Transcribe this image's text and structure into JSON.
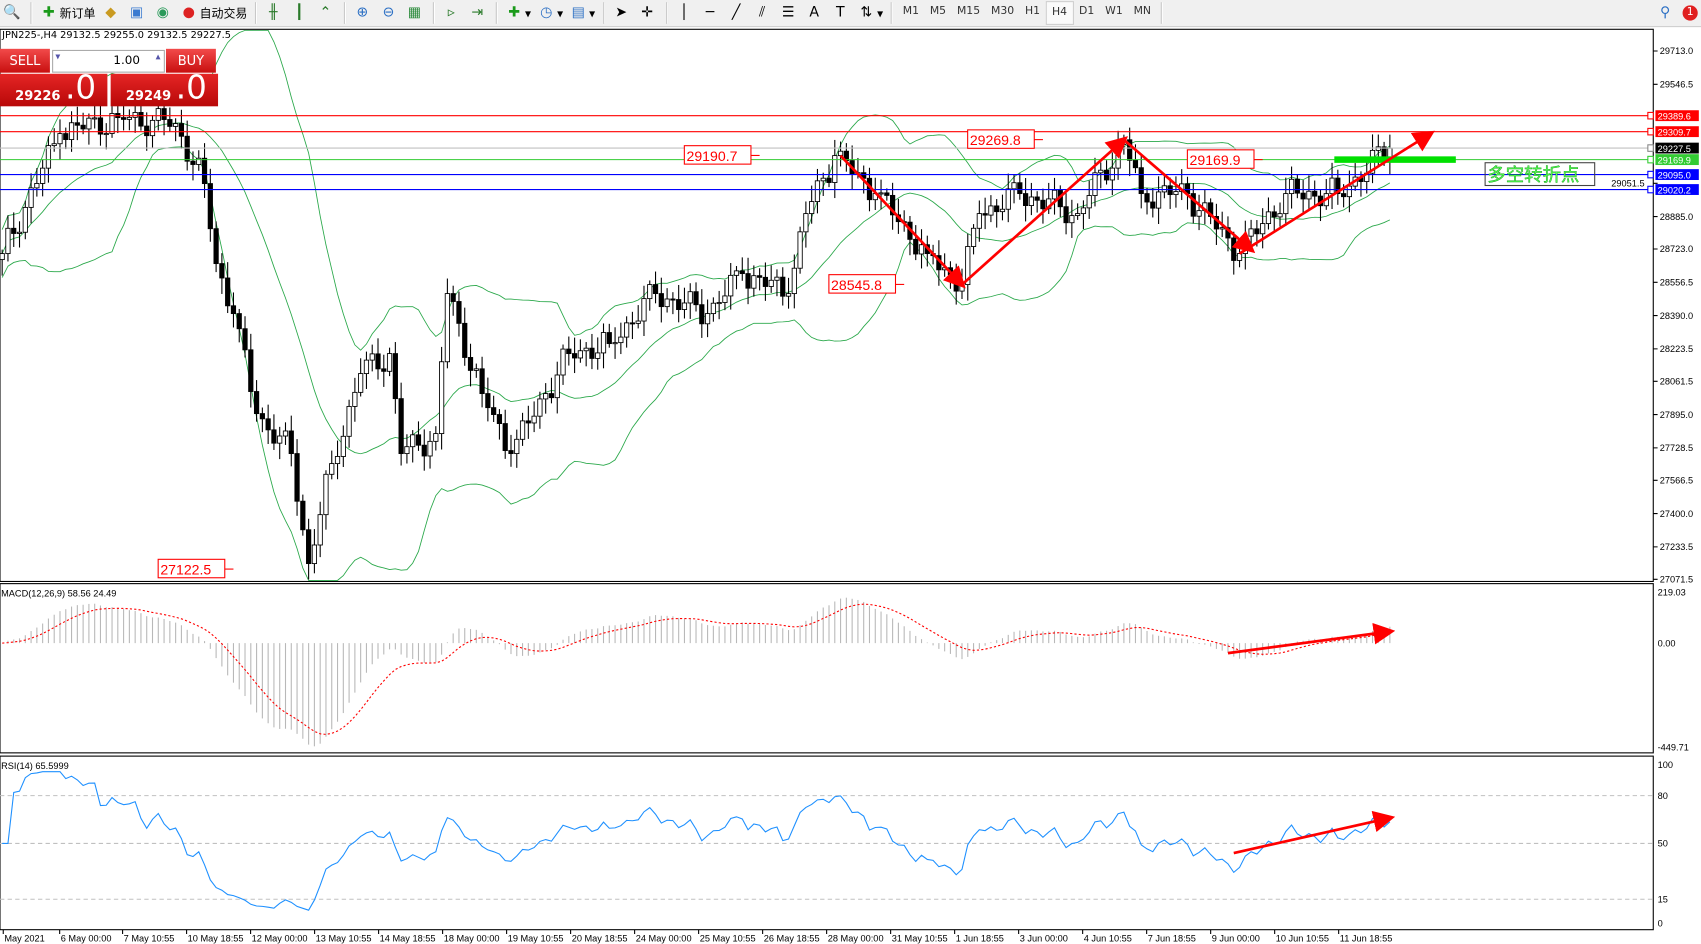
{
  "toolbar": {
    "new_order": "新订单",
    "auto_trading": "自动交易",
    "timeframes": [
      "M1",
      "M5",
      "M15",
      "M30",
      "H1",
      "H4",
      "D1",
      "W1",
      "MN"
    ],
    "active_timeframe": "H4",
    "notification_count": "1"
  },
  "chart": {
    "symbol_line": "JPN225-,H4  29132.5 29255.0 29132.5 29227.5",
    "sell_label": "SELL",
    "buy_label": "BUY",
    "lot": "1.00",
    "bid_main": "29226",
    "bid_big": ".0",
    "ask_main": "29249",
    "ask_big": ".0",
    "price_axis": [
      "29713.0",
      "29546.5",
      "29389.6",
      "29309.7",
      "29227.5",
      "29169.9",
      "29095.0",
      "29051.5",
      "29020.2",
      "28885.0",
      "28723.0",
      "28556.5",
      "28390.0",
      "28223.5",
      "28061.5",
      "27895.0",
      "27728.5",
      "27566.5",
      "27400.0",
      "27233.5",
      "27071.5"
    ],
    "levels": [
      {
        "price": 29389.6,
        "label": "29389.6",
        "color": "#ff0000"
      },
      {
        "price": 29309.7,
        "label": "29309.7",
        "color": "#ff0000"
      },
      {
        "price": 29227.5,
        "label": "29227.5",
        "color": "#000000"
      },
      {
        "price": 29169.9,
        "label": "29169.9",
        "color": "#33cc33"
      },
      {
        "price": 29095.0,
        "label": "29095.0",
        "color": "#0000ff"
      },
      {
        "price": 29020.2,
        "label": "29020.2",
        "color": "#0000ff"
      }
    ],
    "annotations": [
      {
        "text": "29190.7",
        "bar": 131,
        "price": 29190.7
      },
      {
        "text": "29269.8",
        "bar": 180,
        "price": 29269.8
      },
      {
        "text": "28545.8",
        "bar": 156,
        "price": 28545.8
      },
      {
        "text": "27122.5",
        "bar": 40,
        "price": 27122.5
      },
      {
        "text": "29169.9",
        "bar": 218,
        "price": 29169.9
      }
    ],
    "turning_point_label": "多空转折点",
    "arrows": [
      {
        "from": [
          145,
          29190
        ],
        "to": [
          166,
          28545
        ]
      },
      {
        "from": [
          166,
          28545
        ],
        "to": [
          194,
          29269
        ]
      },
      {
        "from": [
          194,
          29269
        ],
        "to": [
          216,
          28720
        ]
      },
      {
        "from": [
          214,
          28700
        ],
        "to": [
          247,
          29300
        ]
      }
    ],
    "price_path": [
      [
        0,
        28700
      ],
      [
        10,
        29300
      ],
      [
        20,
        29380
      ],
      [
        30,
        29350
      ],
      [
        35,
        29050
      ],
      [
        37,
        28650
      ],
      [
        40,
        28400
      ],
      [
        44,
        27900
      ],
      [
        50,
        27700
      ],
      [
        53,
        27150
      ],
      [
        57,
        27650
      ],
      [
        62,
        28100
      ],
      [
        67,
        28200
      ],
      [
        69,
        27700
      ],
      [
        75,
        27800
      ],
      [
        77,
        28500
      ],
      [
        83,
        28000
      ],
      [
        88,
        27700
      ],
      [
        94,
        28000
      ],
      [
        98,
        28200
      ],
      [
        105,
        28250
      ],
      [
        113,
        28500
      ],
      [
        122,
        28400
      ],
      [
        128,
        28600
      ],
      [
        136,
        28500
      ],
      [
        139,
        28900
      ],
      [
        144,
        29190
      ],
      [
        151,
        29000
      ],
      [
        160,
        28700
      ],
      [
        166,
        28545
      ],
      [
        169,
        28900
      ],
      [
        176,
        29000
      ],
      [
        186,
        28900
      ],
      [
        194,
        29269
      ],
      [
        197,
        29000
      ],
      [
        205,
        29000
      ],
      [
        214,
        28700
      ],
      [
        218,
        28850
      ],
      [
        222,
        29000
      ],
      [
        231,
        29000
      ],
      [
        240,
        29227
      ]
    ],
    "bands_color": "#2aa84a"
  },
  "macd": {
    "label": "MACD(12,26,9) 58.56 24.49",
    "axis": [
      "219.03",
      "0.00",
      "-449.71"
    ],
    "max": 219.03,
    "min": -449.71,
    "arrow": {
      "from": [
        212,
        -43
      ],
      "to": [
        240,
        50
      ]
    }
  },
  "rsi": {
    "label": "RSI(14) 65.5999",
    "axis": [
      "100",
      "80",
      "50",
      "15",
      "0"
    ],
    "arrow": {
      "from": [
        213,
        44
      ],
      "to": [
        240,
        66
      ]
    }
  },
  "time_axis": [
    "May 2021",
    "6 May 00:00",
    "7 May 10:55",
    "10 May 18:55",
    "12 May 00:00",
    "13 May 10:55",
    "14 May 18:55",
    "18 May 00:00",
    "19 May 10:55",
    "20 May 18:55",
    "24 May 00:00",
    "25 May 10:55",
    "26 May 18:55",
    "28 May 00:00",
    "31 May 10:55",
    "1 Jun 18:55",
    "3 Jun 00:00",
    "4 Jun 10:55",
    "7 Jun 18:55",
    "9 Jun 00:00",
    "10 Jun 10:55",
    "11 Jun 18:55"
  ]
}
